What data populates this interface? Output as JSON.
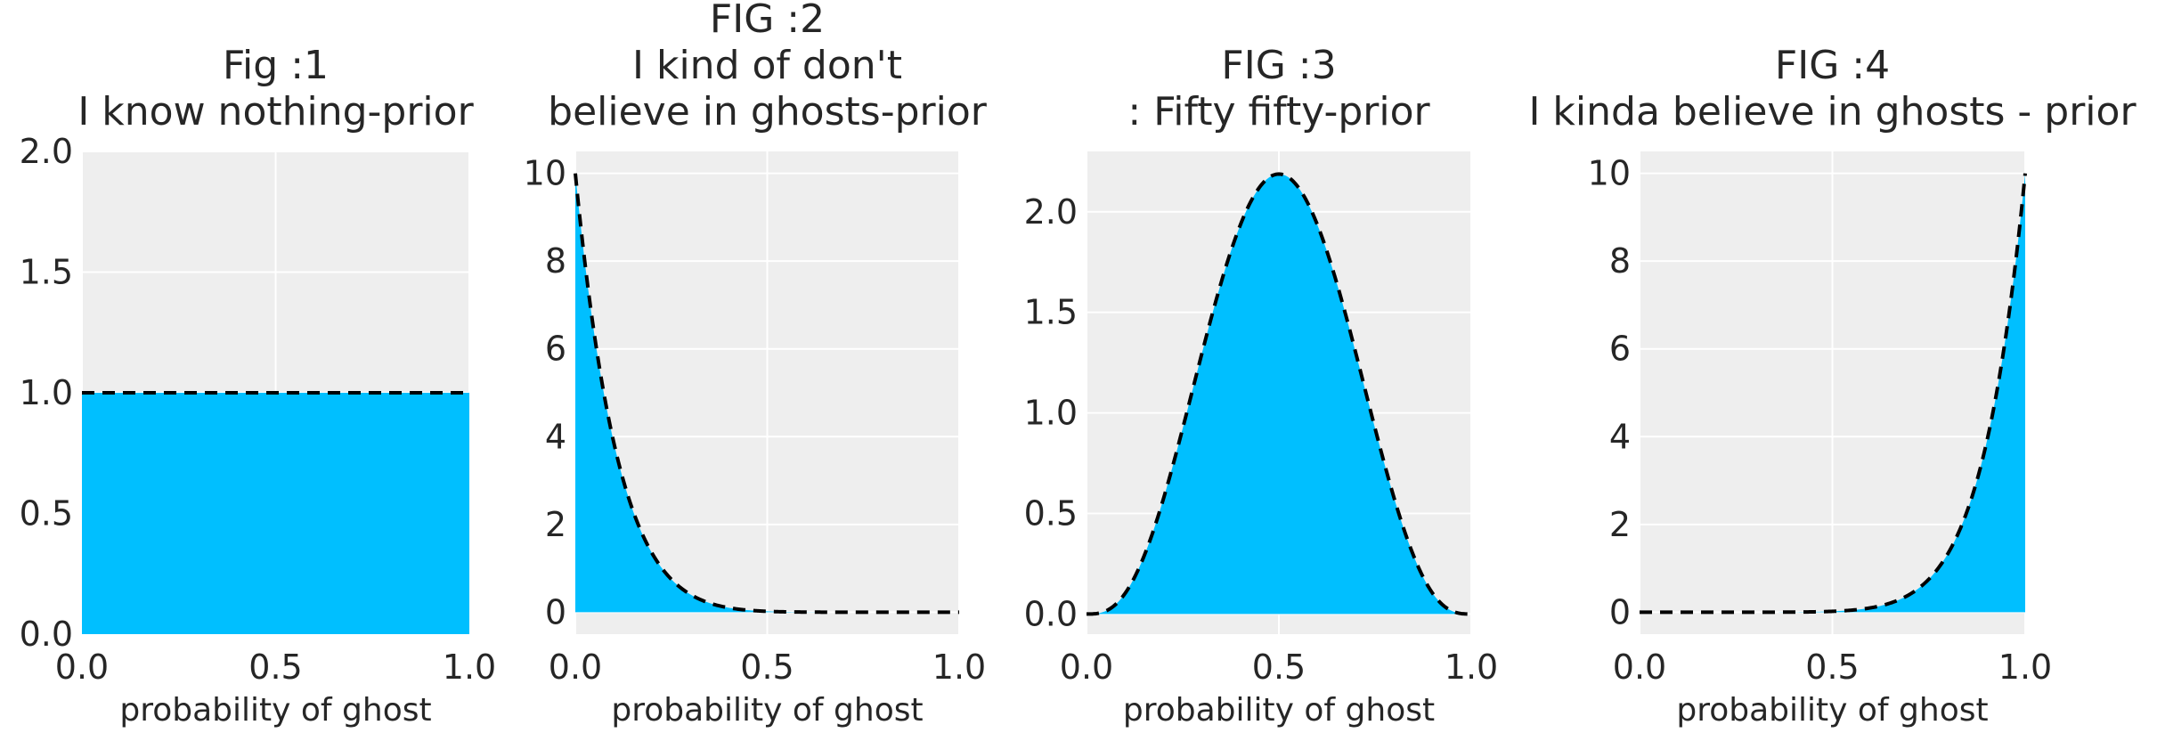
{
  "chart_data": [
    {
      "type": "area",
      "title_lines": [
        "Fig :1",
        "I know nothing-prior"
      ],
      "xlabel": "probability of ghost",
      "ylabel": "",
      "xlim": [
        0,
        1
      ],
      "ylim": [
        0,
        2
      ],
      "xticks": [
        0.0,
        0.5,
        1.0
      ],
      "xtick_labels": [
        "0.0",
        "0.5",
        "1.0"
      ],
      "yticks": [
        0.0,
        0.5,
        1.0,
        1.5,
        2.0
      ],
      "ytick_labels": [
        "0.0",
        "0.5",
        "1.0",
        "1.5",
        "2.0"
      ],
      "distribution": "beta",
      "beta_params": {
        "a": 1,
        "b": 1
      },
      "x": [
        0.0,
        0.1,
        0.2,
        0.3,
        0.4,
        0.5,
        0.6,
        0.7,
        0.8,
        0.9,
        1.0
      ],
      "y": [
        1.0,
        1.0,
        1.0,
        1.0,
        1.0,
        1.0,
        1.0,
        1.0,
        1.0,
        1.0,
        1.0
      ],
      "grid": true
    },
    {
      "type": "area",
      "title_lines": [
        "FIG :2",
        "I kind of don't",
        "believe in ghosts-prior"
      ],
      "xlabel": "probability of ghost",
      "ylabel": "",
      "xlim": [
        0,
        1
      ],
      "ylim": [
        -0.5,
        10.5
      ],
      "xticks": [
        0.0,
        0.5,
        1.0
      ],
      "xtick_labels": [
        "0.0",
        "0.5",
        "1.0"
      ],
      "yticks": [
        0,
        2,
        4,
        6,
        8,
        10
      ],
      "ytick_labels": [
        "0",
        "2",
        "4",
        "6",
        "8",
        "10"
      ],
      "distribution": "beta",
      "beta_params": {
        "a": 1,
        "b": 10
      },
      "x": [
        0.0,
        0.1,
        0.2,
        0.3,
        0.4,
        0.5,
        0.6,
        0.7,
        0.8,
        0.9,
        1.0
      ],
      "y": [
        10.0,
        3.87,
        1.34,
        0.4,
        0.1,
        0.02,
        0.0,
        0.0,
        0.0,
        0.0,
        0.0
      ],
      "grid": true
    },
    {
      "type": "area",
      "title_lines": [
        "FIG :3",
        ": Fifty fifty-prior"
      ],
      "xlabel": "probability of ghost",
      "ylabel": "",
      "xlim": [
        0,
        1
      ],
      "ylim": [
        -0.1,
        2.3
      ],
      "xticks": [
        0.0,
        0.5,
        1.0
      ],
      "xtick_labels": [
        "0.0",
        "0.5",
        "1.0"
      ],
      "yticks": [
        0.0,
        0.5,
        1.0,
        1.5,
        2.0
      ],
      "ytick_labels": [
        "0.0",
        "0.5",
        "1.0",
        "1.5",
        "2.0"
      ],
      "distribution": "beta",
      "beta_params": {
        "a": 4,
        "b": 4
      },
      "x": [
        0.0,
        0.1,
        0.2,
        0.3,
        0.4,
        0.5,
        0.6,
        0.7,
        0.8,
        0.9,
        1.0
      ],
      "y": [
        0.0,
        0.1,
        0.72,
        1.6,
        2.08,
        2.19,
        2.08,
        1.6,
        0.72,
        0.1,
        0.0
      ],
      "grid": true
    },
    {
      "type": "area",
      "title_lines": [
        "FIG :4",
        "I kinda believe in ghosts - prior"
      ],
      "xlabel": "probability of ghost",
      "ylabel": "",
      "xlim": [
        0,
        1
      ],
      "ylim": [
        -0.5,
        10.5
      ],
      "xticks": [
        0.0,
        0.5,
        1.0
      ],
      "xtick_labels": [
        "0.0",
        "0.5",
        "1.0"
      ],
      "yticks": [
        0,
        2,
        4,
        6,
        8,
        10
      ],
      "ytick_labels": [
        "0",
        "2",
        "4",
        "6",
        "8",
        "10"
      ],
      "distribution": "beta",
      "beta_params": {
        "a": 10,
        "b": 1
      },
      "x": [
        0.0,
        0.1,
        0.2,
        0.3,
        0.4,
        0.5,
        0.6,
        0.7,
        0.8,
        0.9,
        1.0
      ],
      "y": [
        0.0,
        0.0,
        0.0,
        0.0,
        0.0,
        0.02,
        0.1,
        0.4,
        1.34,
        3.87,
        10.0
      ],
      "grid": true
    }
  ],
  "colors": {
    "fill": "#00BFFF",
    "line": "#000000",
    "axes_background": "#EEEEEE",
    "grid": "#FFFFFF",
    "text": "#262626"
  },
  "line_style": "dashed"
}
